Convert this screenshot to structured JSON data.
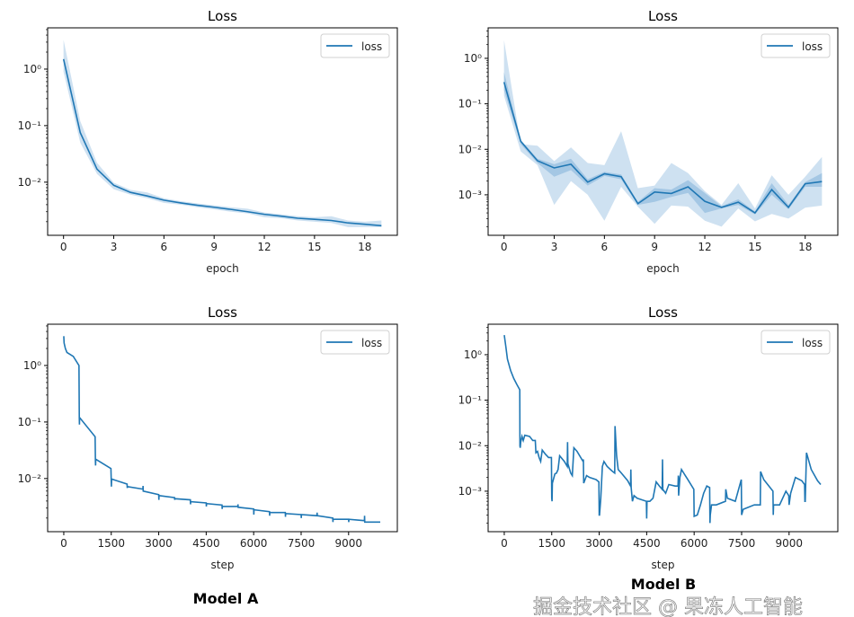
{
  "colors": {
    "line": "#1f77b4",
    "band_outer": "#c6dcee",
    "band_inner": "#9cc2e2"
  },
  "model_labels": [
    "Model A",
    "Model B"
  ],
  "watermark": "掘金技术社区 @ 果冻人工智能",
  "chart_data": [
    {
      "type": "line",
      "title": "Loss",
      "xlabel": "epoch",
      "legend": [
        "loss"
      ],
      "legend_position": "top-right",
      "yscale": "log",
      "ylim_log10": [
        -2.94,
        0.73
      ],
      "xlim": [
        -0.95,
        19.95
      ],
      "xticks": [
        0,
        3,
        6,
        9,
        12,
        15,
        18
      ],
      "xtick_labels": [
        "0",
        "3",
        "6",
        "9",
        "12",
        "15",
        "18"
      ],
      "yticks_log10": [
        -2,
        -1,
        0
      ],
      "ytick_labels": [
        "10⁻²",
        "10⁻¹",
        "10⁰"
      ],
      "x": [
        0,
        1,
        2,
        3,
        4,
        5,
        6,
        7,
        8,
        9,
        10,
        11,
        12,
        13,
        14,
        15,
        16,
        17,
        18,
        19
      ],
      "y": [
        1.5,
        0.075,
        0.017,
        0.0088,
        0.0066,
        0.0057,
        0.0048,
        0.0043,
        0.0039,
        0.0036,
        0.0033,
        0.003,
        0.0027,
        0.0025,
        0.0023,
        0.0022,
        0.0021,
        0.0019,
        0.0018,
        0.0017
      ],
      "band_upper": [
        3.3,
        0.12,
        0.022,
        0.0098,
        0.0073,
        0.0066,
        0.0052,
        0.0046,
        0.0042,
        0.0039,
        0.0036,
        0.0034,
        0.0029,
        0.0027,
        0.0025,
        0.0024,
        0.0025,
        0.0021,
        0.002,
        0.0021
      ],
      "band_lower": [
        0.9,
        0.05,
        0.014,
        0.0075,
        0.006,
        0.0052,
        0.0043,
        0.004,
        0.0036,
        0.0033,
        0.003,
        0.0028,
        0.0024,
        0.0023,
        0.0021,
        0.002,
        0.0019,
        0.0016,
        0.0016,
        0.0016
      ]
    },
    {
      "type": "line",
      "title": "Loss",
      "xlabel": "epoch",
      "legend": [
        "loss"
      ],
      "legend_position": "top-right",
      "yscale": "log",
      "ylim_log10": [
        -3.89,
        0.67
      ],
      "xlim": [
        -0.95,
        19.95
      ],
      "xticks": [
        0,
        3,
        6,
        9,
        12,
        15,
        18
      ],
      "xtick_labels": [
        "0",
        "3",
        "6",
        "9",
        "12",
        "15",
        "18"
      ],
      "yticks_log10": [
        -3,
        -2,
        -1,
        0
      ],
      "ytick_labels": [
        "10⁻³",
        "10⁻²",
        "10⁻¹",
        "10⁰"
      ],
      "x": [
        0,
        1,
        2,
        3,
        4,
        5,
        6,
        7,
        8,
        9,
        10,
        11,
        12,
        13,
        14,
        15,
        16,
        17,
        18,
        19
      ],
      "y": [
        0.3,
        0.015,
        0.0056,
        0.0039,
        0.0047,
        0.0019,
        0.0029,
        0.0025,
        0.00064,
        0.00115,
        0.00107,
        0.0015,
        0.00072,
        0.00053,
        0.00069,
        0.0004,
        0.0013,
        0.00053,
        0.00175,
        0.00195
      ],
      "band_upper": [
        2.5,
        0.013,
        0.012,
        0.0055,
        0.011,
        0.005,
        0.0045,
        0.025,
        0.0014,
        0.0016,
        0.005,
        0.003,
        0.0012,
        0.0006,
        0.0018,
        0.0005,
        0.0027,
        0.001,
        0.0025,
        0.0068
      ],
      "band_lower": [
        0.15,
        0.009,
        0.0045,
        0.0006,
        0.002,
        0.001,
        0.00027,
        0.0015,
        0.00055,
        0.00023,
        0.00058,
        0.00055,
        0.00027,
        0.0002,
        0.0005,
        0.00026,
        0.00038,
        0.0003,
        0.00052,
        0.00058
      ],
      "inner_upper": [
        0.5,
        0.016,
        0.0062,
        0.0047,
        0.0062,
        0.0022,
        0.0032,
        0.0028,
        0.0007,
        0.0014,
        0.0013,
        0.0021,
        0.0011,
        0.00056,
        0.0008,
        0.00043,
        0.0018,
        0.0006,
        0.0019,
        0.003
      ],
      "inner_lower": [
        0.2,
        0.013,
        0.005,
        0.0025,
        0.0035,
        0.0016,
        0.0026,
        0.0022,
        0.0006,
        0.0007,
        0.0009,
        0.0011,
        0.0004,
        0.0005,
        0.0006,
        0.00037,
        0.001,
        0.00048,
        0.0015,
        0.0015
      ]
    },
    {
      "type": "line",
      "title": "Loss",
      "xlabel": "step",
      "legend": [
        "loss"
      ],
      "legend_position": "top-right",
      "yscale": "log",
      "ylim_log10": [
        -2.94,
        0.73
      ],
      "xlim": [
        -510,
        10540
      ],
      "xticks": [
        0,
        1500,
        3000,
        4500,
        6000,
        7500,
        9000
      ],
      "xtick_labels": [
        "0",
        "1500",
        "3000",
        "4500",
        "6000",
        "7500",
        "9000"
      ],
      "yticks_log10": [
        -2,
        -1,
        0
      ],
      "ytick_labels": [
        "10⁻²",
        "10⁻¹",
        "10⁰"
      ],
      "points": [
        [
          0,
          3.3
        ],
        [
          10,
          2.5
        ],
        [
          50,
          2.0
        ],
        [
          100,
          1.7
        ],
        [
          300,
          1.45
        ],
        [
          480,
          1.0
        ],
        [
          490,
          0.12
        ],
        [
          495,
          0.09
        ],
        [
          500,
          0.12
        ],
        [
          990,
          0.055
        ],
        [
          1000,
          0.02
        ],
        [
          1005,
          0.017
        ],
        [
          1010,
          0.022
        ],
        [
          1490,
          0.015
        ],
        [
          1500,
          0.009
        ],
        [
          1505,
          0.0072
        ],
        [
          1510,
          0.0098
        ],
        [
          2000,
          0.008
        ],
        [
          2005,
          0.0068
        ],
        [
          2010,
          0.0072
        ],
        [
          2500,
          0.0065
        ],
        [
          2505,
          0.0074
        ],
        [
          2510,
          0.006
        ],
        [
          3000,
          0.0052
        ],
        [
          3005,
          0.0042
        ],
        [
          3010,
          0.005
        ],
        [
          3500,
          0.0046
        ],
        [
          3505,
          0.0042
        ],
        [
          3510,
          0.0044
        ],
        [
          4000,
          0.0042
        ],
        [
          4005,
          0.0035
        ],
        [
          4010,
          0.0039
        ],
        [
          4500,
          0.0037
        ],
        [
          4505,
          0.0032
        ],
        [
          4510,
          0.0036
        ],
        [
          5000,
          0.0034
        ],
        [
          5005,
          0.0029
        ],
        [
          5010,
          0.0032
        ],
        [
          5500,
          0.0032
        ],
        [
          5505,
          0.0035
        ],
        [
          5510,
          0.0031
        ],
        [
          6000,
          0.0029
        ],
        [
          6005,
          0.0023
        ],
        [
          6010,
          0.0028
        ],
        [
          6500,
          0.0026
        ],
        [
          6505,
          0.0022
        ],
        [
          6510,
          0.0025
        ],
        [
          7000,
          0.0025
        ],
        [
          7005,
          0.0021
        ],
        [
          7010,
          0.0024
        ],
        [
          7500,
          0.0023
        ],
        [
          7505,
          0.002
        ],
        [
          7510,
          0.0023
        ],
        [
          8000,
          0.0022
        ],
        [
          8005,
          0.0025
        ],
        [
          8010,
          0.0022
        ],
        [
          8500,
          0.002
        ],
        [
          8505,
          0.0017
        ],
        [
          8510,
          0.0019
        ],
        [
          9000,
          0.0019
        ],
        [
          9005,
          0.0017
        ],
        [
          9010,
          0.0019
        ],
        [
          9500,
          0.0018
        ],
        [
          9505,
          0.0022
        ],
        [
          9510,
          0.0017
        ],
        [
          10000,
          0.0017
        ]
      ]
    },
    {
      "type": "line",
      "title": "Loss",
      "xlabel": "step",
      "legend": [
        "loss"
      ],
      "legend_position": "top-right",
      "yscale": "log",
      "ylim_log10": [
        -3.89,
        0.67
      ],
      "xlim": [
        -510,
        10540
      ],
      "xticks": [
        0,
        1500,
        3000,
        4500,
        6000,
        7500,
        9000
      ],
      "xtick_labels": [
        "0",
        "1500",
        "3000",
        "4500",
        "6000",
        "7500",
        "9000"
      ],
      "yticks_log10": [
        -3,
        -2,
        -1,
        0
      ],
      "ytick_labels": [
        "10⁻³",
        "10⁻²",
        "10⁻¹",
        "10⁰"
      ],
      "points": [
        [
          0,
          2.7
        ],
        [
          50,
          1.5
        ],
        [
          100,
          0.8
        ],
        [
          200,
          0.45
        ],
        [
          300,
          0.3
        ],
        [
          400,
          0.22
        ],
        [
          490,
          0.17
        ],
        [
          495,
          0.01
        ],
        [
          505,
          0.009
        ],
        [
          520,
          0.012
        ],
        [
          560,
          0.016
        ],
        [
          600,
          0.013
        ],
        [
          650,
          0.017
        ],
        [
          800,
          0.016
        ],
        [
          900,
          0.013
        ],
        [
          980,
          0.013
        ],
        [
          1000,
          0.007
        ],
        [
          1050,
          0.0075
        ],
        [
          1100,
          0.0055
        ],
        [
          1150,
          0.0045
        ],
        [
          1200,
          0.008
        ],
        [
          1300,
          0.0065
        ],
        [
          1400,
          0.0055
        ],
        [
          1490,
          0.0055
        ],
        [
          1500,
          0.0007
        ],
        [
          1510,
          0.0006
        ],
        [
          1520,
          0.0015
        ],
        [
          1600,
          0.0024
        ],
        [
          1650,
          0.0025
        ],
        [
          1700,
          0.003
        ],
        [
          1750,
          0.006
        ],
        [
          1900,
          0.0045
        ],
        [
          1990,
          0.0035
        ],
        [
          2000,
          0.012
        ],
        [
          2010,
          0.004
        ],
        [
          2100,
          0.0025
        ],
        [
          2150,
          0.0022
        ],
        [
          2200,
          0.009
        ],
        [
          2300,
          0.0075
        ],
        [
          2490,
          0.0045
        ],
        [
          2500,
          0.005
        ],
        [
          2510,
          0.0015
        ],
        [
          2600,
          0.0022
        ],
        [
          2700,
          0.002
        ],
        [
          2900,
          0.0018
        ],
        [
          2990,
          0.0016
        ],
        [
          3000,
          0.0003
        ],
        [
          3010,
          0.0003
        ],
        [
          3050,
          0.0007
        ],
        [
          3100,
          0.0035
        ],
        [
          3150,
          0.0045
        ],
        [
          3250,
          0.0035
        ],
        [
          3400,
          0.0028
        ],
        [
          3490,
          0.0025
        ],
        [
          3500,
          0.027
        ],
        [
          3550,
          0.006
        ],
        [
          3600,
          0.003
        ],
        [
          3700,
          0.0025
        ],
        [
          3900,
          0.0017
        ],
        [
          3990,
          0.0013
        ],
        [
          4000,
          0.003
        ],
        [
          4010,
          0.0012
        ],
        [
          4050,
          0.0006
        ],
        [
          4100,
          0.0008
        ],
        [
          4200,
          0.0007
        ],
        [
          4490,
          0.0006
        ],
        [
          4500,
          0.00025
        ],
        [
          4510,
          0.0006
        ],
        [
          4600,
          0.0006
        ],
        [
          4700,
          0.0007
        ],
        [
          4800,
          0.0016
        ],
        [
          4900,
          0.0013
        ],
        [
          4990,
          0.0011
        ],
        [
          5000,
          0.005
        ],
        [
          5010,
          0.0011
        ],
        [
          5100,
          0.0009
        ],
        [
          5200,
          0.0014
        ],
        [
          5400,
          0.0013
        ],
        [
          5490,
          0.0013
        ],
        [
          5500,
          0.0022
        ],
        [
          5510,
          0.0008
        ],
        [
          5550,
          0.002
        ],
        [
          5600,
          0.003
        ],
        [
          5800,
          0.0018
        ],
        [
          5990,
          0.0011
        ],
        [
          6000,
          0.00028
        ],
        [
          6100,
          0.0003
        ],
        [
          6200,
          0.0005
        ],
        [
          6300,
          0.0009
        ],
        [
          6400,
          0.0013
        ],
        [
          6490,
          0.0012
        ],
        [
          6500,
          0.0002
        ],
        [
          6510,
          0.0003
        ],
        [
          6550,
          0.0005
        ],
        [
          6700,
          0.0005
        ],
        [
          6990,
          0.0006
        ],
        [
          7000,
          0.0011
        ],
        [
          7050,
          0.0007
        ],
        [
          7300,
          0.0006
        ],
        [
          7490,
          0.0018
        ],
        [
          7500,
          0.0003
        ],
        [
          7550,
          0.0004
        ],
        [
          7900,
          0.0005
        ],
        [
          8090,
          0.0005
        ],
        [
          8100,
          0.0027
        ],
        [
          8200,
          0.0018
        ],
        [
          8400,
          0.0012
        ],
        [
          8490,
          0.001
        ],
        [
          8500,
          0.0003
        ],
        [
          8510,
          0.0005
        ],
        [
          8700,
          0.0005
        ],
        [
          8900,
          0.001
        ],
        [
          8990,
          0.0008
        ],
        [
          9000,
          0.0005
        ],
        [
          9050,
          0.0009
        ],
        [
          9200,
          0.002
        ],
        [
          9400,
          0.0017
        ],
        [
          9490,
          0.0014
        ],
        [
          9500,
          0.0006
        ],
        [
          9510,
          0.0006
        ],
        [
          9550,
          0.007
        ],
        [
          9700,
          0.003
        ],
        [
          9900,
          0.0017
        ],
        [
          10000,
          0.0014
        ]
      ]
    }
  ]
}
